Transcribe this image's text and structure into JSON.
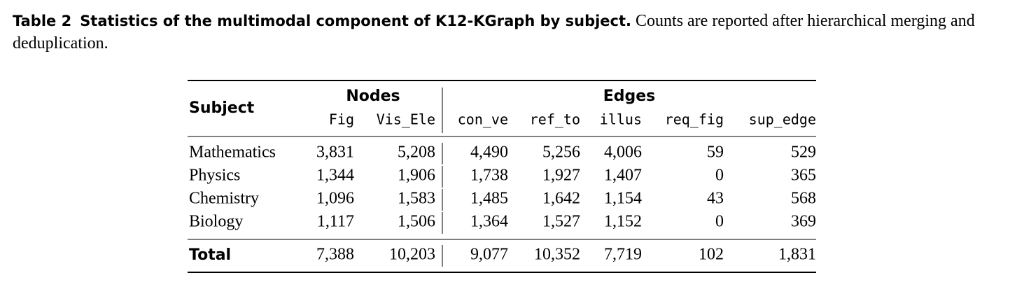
{
  "caption": {
    "label": "Table 2",
    "title": "Statistics of the multimodal component of K12-KGraph by subject.",
    "text": "Counts are reported after hierarchical merging and deduplication."
  },
  "table": {
    "stub_header": "Subject",
    "groups": [
      "Nodes",
      "Edges"
    ],
    "columns": [
      "Fig",
      "Vis_Ele",
      "con_ve",
      "ref_to",
      "illus",
      "req_fig",
      "sup_edge"
    ],
    "rows": [
      [
        "Mathematics",
        "3,831",
        "5,208",
        "4,490",
        "5,256",
        "4,006",
        "59",
        "529"
      ],
      [
        "Physics",
        "1,344",
        "1,906",
        "1,738",
        "1,927",
        "1,407",
        "0",
        "365"
      ],
      [
        "Chemistry",
        "1,096",
        "1,583",
        "1,485",
        "1,642",
        "1,154",
        "43",
        "568"
      ],
      [
        "Biology",
        "1,117",
        "1,506",
        "1,364",
        "1,527",
        "1,152",
        "0",
        "369"
      ]
    ],
    "total": [
      "Total",
      "7,388",
      "10,203",
      "9,077",
      "10,352",
      "7,719",
      "102",
      "1,831"
    ]
  }
}
